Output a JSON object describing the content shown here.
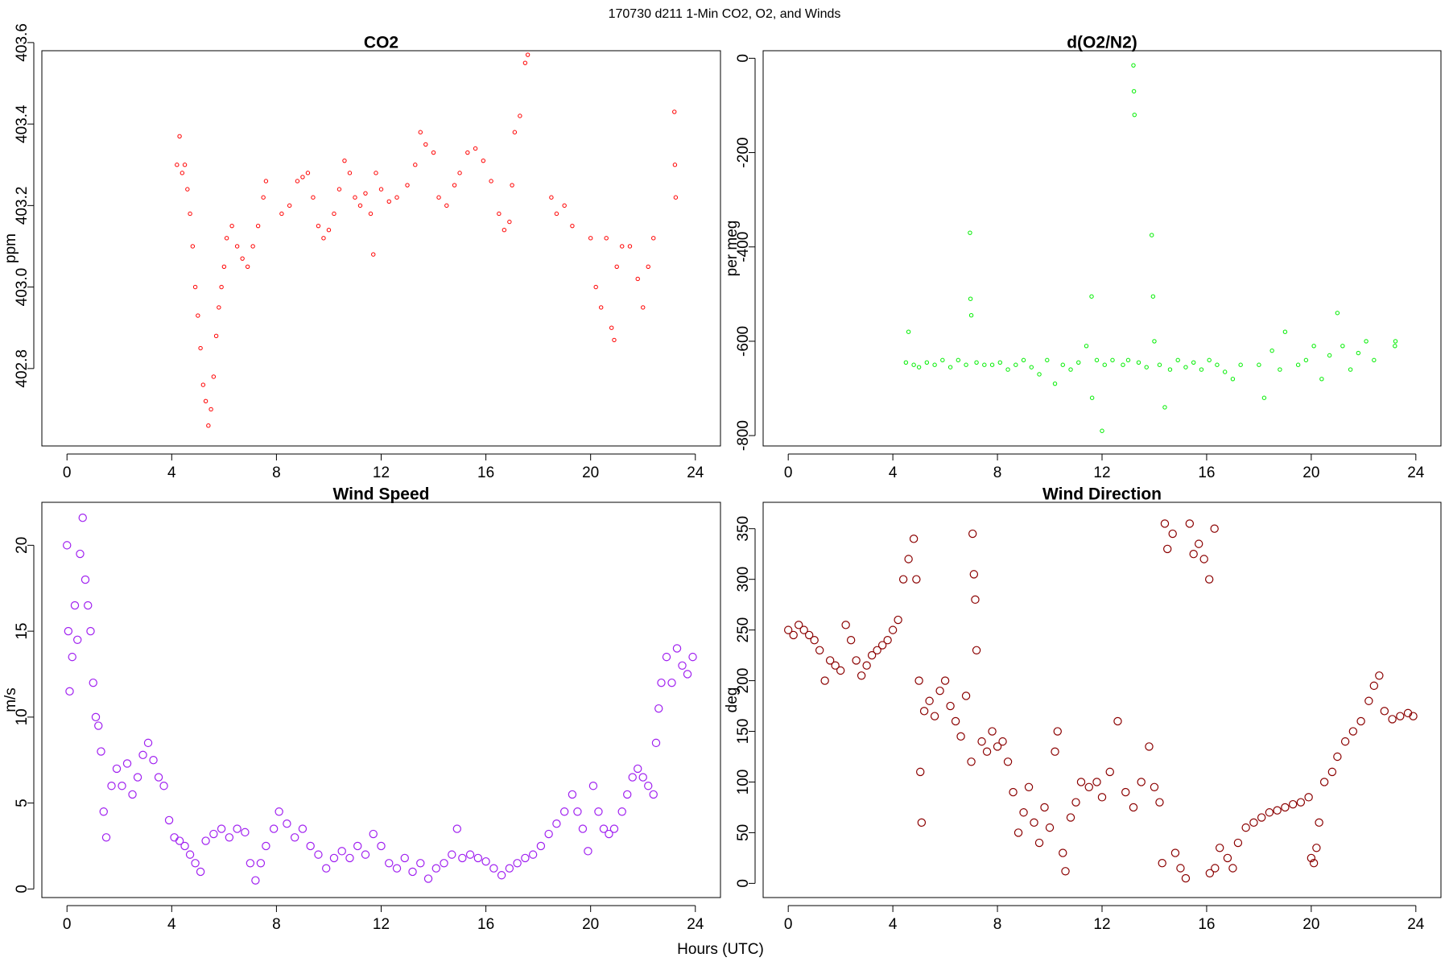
{
  "title": "170730   d211   1-Min CO2, O2, and Winds",
  "x_label": "Hours (UTC)",
  "chart_data": [
    {
      "type": "scatter",
      "title": "CO2",
      "y_label": "ppm",
      "color": "#ff0000",
      "xlim": [
        -0.96,
        24.96
      ],
      "xticks": [
        0,
        4,
        8,
        12,
        16,
        20,
        24
      ],
      "ylim": [
        402.61,
        403.58
      ],
      "yticks": [
        402.8,
        {
          "value": 403,
          "label": "403.0"
        },
        403.2,
        403.4,
        403.6
      ],
      "x": [
        4.2,
        4.3,
        4.4,
        4.5,
        4.6,
        4.7,
        4.8,
        4.9,
        5.0,
        5.1,
        5.2,
        5.3,
        5.4,
        5.5,
        5.6,
        5.7,
        5.8,
        5.9,
        6.0,
        6.1,
        6.3,
        6.5,
        6.7,
        6.9,
        7.1,
        7.3,
        7.5,
        7.6,
        8.2,
        8.5,
        8.8,
        9.0,
        9.2,
        9.4,
        9.6,
        9.8,
        10.0,
        10.2,
        10.4,
        10.6,
        10.8,
        11.0,
        11.2,
        11.4,
        11.6,
        11.7,
        11.8,
        12.0,
        12.3,
        12.6,
        13.0,
        13.3,
        13.5,
        13.7,
        14.0,
        14.2,
        14.5,
        14.8,
        15.0,
        15.3,
        15.6,
        15.9,
        16.2,
        16.5,
        16.7,
        16.9,
        17.0,
        17.1,
        17.3,
        17.5,
        17.6,
        18.5,
        18.7,
        19.0,
        19.3,
        20.0,
        20.2,
        20.4,
        20.6,
        20.8,
        20.9,
        21.0,
        21.2,
        21.5,
        21.8,
        22.0,
        22.2,
        22.4,
        23.2,
        23.22,
        23.25
      ],
      "values": [
        403.3,
        403.37,
        403.28,
        403.3,
        403.24,
        403.18,
        403.1,
        403.0,
        402.93,
        402.85,
        402.76,
        402.72,
        402.66,
        402.7,
        402.78,
        402.88,
        402.95,
        403.0,
        403.05,
        403.12,
        403.15,
        403.1,
        403.07,
        403.05,
        403.1,
        403.15,
        403.22,
        403.26,
        403.18,
        403.2,
        403.26,
        403.27,
        403.28,
        403.22,
        403.15,
        403.12,
        403.14,
        403.18,
        403.24,
        403.31,
        403.28,
        403.22,
        403.2,
        403.23,
        403.18,
        403.08,
        403.28,
        403.24,
        403.21,
        403.22,
        403.25,
        403.3,
        403.38,
        403.35,
        403.33,
        403.22,
        403.2,
        403.25,
        403.28,
        403.33,
        403.34,
        403.31,
        403.26,
        403.18,
        403.14,
        403.16,
        403.25,
        403.38,
        403.42,
        403.55,
        403.57,
        403.22,
        403.18,
        403.2,
        403.15,
        403.12,
        403.0,
        402.95,
        403.12,
        402.9,
        402.87,
        403.05,
        403.1,
        403.1,
        403.02,
        402.95,
        403.05,
        403.12,
        403.43,
        403.3,
        403.22
      ]
    },
    {
      "type": "scatter",
      "title": "d(O2/N2)",
      "y_label": "per meg",
      "color": "#00ee00",
      "xlim": [
        -0.96,
        24.96
      ],
      "xticks": [
        0,
        4,
        8,
        12,
        16,
        20,
        24
      ],
      "ylim": [
        -822,
        16
      ],
      "yticks": [
        0,
        -200,
        -400,
        -600,
        -800
      ],
      "x": [
        4.5,
        4.6,
        4.8,
        5.0,
        5.3,
        5.6,
        5.9,
        6.2,
        6.5,
        6.8,
        6.95,
        6.97,
        7.0,
        7.2,
        7.5,
        7.8,
        8.1,
        8.4,
        8.7,
        9.0,
        9.3,
        9.6,
        9.9,
        10.2,
        10.5,
        10.8,
        11.1,
        11.4,
        11.6,
        11.62,
        11.8,
        12.0,
        12.1,
        12.4,
        12.8,
        13.0,
        13.2,
        13.22,
        13.24,
        13.4,
        13.7,
        13.9,
        13.95,
        14.0,
        14.2,
        14.4,
        14.6,
        14.9,
        15.2,
        15.5,
        15.8,
        16.1,
        16.4,
        16.7,
        17.0,
        17.3,
        18.0,
        18.2,
        18.5,
        18.8,
        19.0,
        19.5,
        19.8,
        20.1,
        20.4,
        20.7,
        21.0,
        21.2,
        21.5,
        21.8,
        22.1,
        22.4,
        23.2,
        23.22
      ],
      "values": [
        -645,
        -580,
        -650,
        -655,
        -645,
        -650,
        -640,
        -655,
        -640,
        -650,
        -370,
        -510,
        -545,
        -645,
        -650,
        -650,
        -645,
        -660,
        -650,
        -640,
        -655,
        -670,
        -640,
        -690,
        -650,
        -660,
        -645,
        -610,
        -505,
        -720,
        -640,
        -790,
        -650,
        -640,
        -650,
        -640,
        -15,
        -70,
        -120,
        -645,
        -655,
        -375,
        -505,
        -600,
        -650,
        -740,
        -660,
        -640,
        -655,
        -645,
        -660,
        -640,
        -650,
        -665,
        -680,
        -650,
        -650,
        -720,
        -620,
        -660,
        -580,
        -650,
        -640,
        -610,
        -680,
        -630,
        -540,
        -610,
        -660,
        -625,
        -600,
        -640,
        -610,
        -600
      ]
    },
    {
      "type": "scatter",
      "title": "Wind Speed",
      "y_label": "m/s",
      "color": "#a020f0",
      "xlim": [
        -0.96,
        24.96
      ],
      "xticks": [
        0,
        4,
        8,
        12,
        16,
        20,
        24
      ],
      "ylim": [
        -0.5,
        22.5
      ],
      "yticks": [
        0,
        5,
        10,
        15,
        20
      ],
      "x": [
        0.0,
        0.05,
        0.1,
        0.2,
        0.3,
        0.4,
        0.5,
        0.6,
        0.7,
        0.8,
        0.9,
        1.0,
        1.1,
        1.2,
        1.3,
        1.4,
        1.5,
        1.7,
        1.9,
        2.1,
        2.3,
        2.5,
        2.7,
        2.9,
        3.1,
        3.3,
        3.5,
        3.7,
        3.9,
        4.1,
        4.3,
        4.5,
        4.7,
        4.9,
        5.1,
        5.3,
        5.6,
        5.9,
        6.2,
        6.5,
        6.8,
        7.0,
        7.2,
        7.4,
        7.6,
        7.9,
        8.1,
        8.4,
        8.7,
        9.0,
        9.3,
        9.6,
        9.9,
        10.2,
        10.5,
        10.8,
        11.1,
        11.4,
        11.7,
        12.0,
        12.3,
        12.6,
        12.9,
        13.2,
        13.5,
        13.8,
        14.1,
        14.4,
        14.7,
        14.9,
        15.1,
        15.4,
        15.7,
        16.0,
        16.3,
        16.6,
        16.9,
        17.2,
        17.5,
        17.8,
        18.1,
        18.4,
        18.7,
        19.0,
        19.3,
        19.5,
        19.7,
        19.9,
        20.1,
        20.3,
        20.5,
        20.7,
        20.9,
        21.2,
        21.4,
        21.6,
        21.8,
        22.0,
        22.2,
        22.4,
        22.5,
        22.6,
        22.7,
        22.9,
        23.1,
        23.3,
        23.5,
        23.7,
        23.9
      ],
      "values": [
        20,
        15,
        11.5,
        13.5,
        16.5,
        14.5,
        19.5,
        21.6,
        18,
        16.5,
        15,
        12,
        10,
        9.5,
        8,
        4.5,
        3,
        6,
        7,
        6,
        7.3,
        5.5,
        6.5,
        7.8,
        8.5,
        7.5,
        6.5,
        6,
        4,
        3,
        2.8,
        2.5,
        2,
        1.5,
        1.0,
        2.8,
        3.2,
        3.5,
        3.0,
        3.5,
        3.3,
        1.5,
        0.5,
        1.5,
        2.5,
        3.5,
        4.5,
        3.8,
        3.0,
        3.5,
        2.5,
        2.0,
        1.2,
        1.8,
        2.2,
        1.8,
        2.5,
        2.0,
        3.2,
        2.5,
        1.5,
        1.2,
        1.8,
        1.0,
        1.5,
        0.6,
        1.2,
        1.5,
        2.0,
        3.5,
        1.8,
        2.0,
        1.8,
        1.6,
        1.2,
        0.8,
        1.2,
        1.5,
        1.8,
        2.0,
        2.5,
        3.2,
        3.8,
        4.5,
        5.5,
        4.5,
        3.5,
        2.2,
        6.0,
        4.5,
        3.5,
        3.2,
        3.5,
        4.5,
        5.5,
        6.5,
        7.0,
        6.5,
        6.0,
        5.5,
        8.5,
        10.5,
        12,
        13.5,
        12,
        14,
        13,
        12.5,
        13.5
      ]
    },
    {
      "type": "scatter",
      "title": "Wind Direction",
      "y_label": "deg",
      "color": "#8b0000",
      "xlim": [
        -0.96,
        24.96
      ],
      "xticks": [
        0,
        4,
        8,
        12,
        16,
        20,
        24
      ],
      "ylim": [
        -14,
        376
      ],
      "yticks": [
        0,
        50,
        100,
        150,
        200,
        250,
        300,
        350
      ],
      "x": [
        0.0,
        0.2,
        0.4,
        0.6,
        0.8,
        1.0,
        1.2,
        1.4,
        1.6,
        1.8,
        2.0,
        2.2,
        2.4,
        2.6,
        2.8,
        3.0,
        3.2,
        3.4,
        3.6,
        3.8,
        4.0,
        4.2,
        4.4,
        4.6,
        4.8,
        4.9,
        5.0,
        5.05,
        5.1,
        5.2,
        5.4,
        5.6,
        5.8,
        6.0,
        6.2,
        6.4,
        6.6,
        6.8,
        7.0,
        7.05,
        7.1,
        7.15,
        7.2,
        7.4,
        7.6,
        7.8,
        8.0,
        8.2,
        8.4,
        8.6,
        8.8,
        9.0,
        9.2,
        9.4,
        9.6,
        9.8,
        10.0,
        10.2,
        10.3,
        10.5,
        10.6,
        10.8,
        11.0,
        11.2,
        11.5,
        11.8,
        12.0,
        12.3,
        12.6,
        12.9,
        13.2,
        13.5,
        13.8,
        14.0,
        14.2,
        14.3,
        14.4,
        14.5,
        14.7,
        14.8,
        15.0,
        15.2,
        15.35,
        15.5,
        15.7,
        15.9,
        16.1,
        16.3,
        16.12,
        16.32,
        16.5,
        16.8,
        17.0,
        17.2,
        17.5,
        17.8,
        18.1,
        18.4,
        18.7,
        19.0,
        19.3,
        19.6,
        19.9,
        20.0,
        20.1,
        20.2,
        20.3,
        20.5,
        20.8,
        21.0,
        21.3,
        21.6,
        21.9,
        22.2,
        22.4,
        22.6,
        22.8,
        23.1,
        23.4,
        23.7,
        23.9
      ],
      "values": [
        250,
        245,
        255,
        250,
        245,
        240,
        230,
        200,
        220,
        215,
        210,
        255,
        240,
        220,
        205,
        215,
        225,
        230,
        235,
        240,
        250,
        260,
        300,
        320,
        340,
        300,
        200,
        110,
        60,
        170,
        180,
        165,
        190,
        200,
        175,
        160,
        145,
        185,
        120,
        345,
        305,
        280,
        230,
        140,
        130,
        150,
        135,
        140,
        120,
        90,
        50,
        70,
        95,
        60,
        40,
        75,
        55,
        130,
        150,
        30,
        12,
        65,
        80,
        100,
        95,
        100,
        85,
        110,
        160,
        90,
        75,
        100,
        135,
        95,
        80,
        20,
        355,
        330,
        345,
        30,
        15,
        5,
        355,
        325,
        335,
        320,
        300,
        350,
        10,
        15,
        35,
        25,
        15,
        40,
        55,
        60,
        65,
        70,
        72,
        75,
        78,
        80,
        85,
        25,
        20,
        35,
        60,
        100,
        110,
        125,
        140,
        150,
        160,
        180,
        195,
        205,
        170,
        162,
        165,
        168,
        165
      ]
    }
  ]
}
